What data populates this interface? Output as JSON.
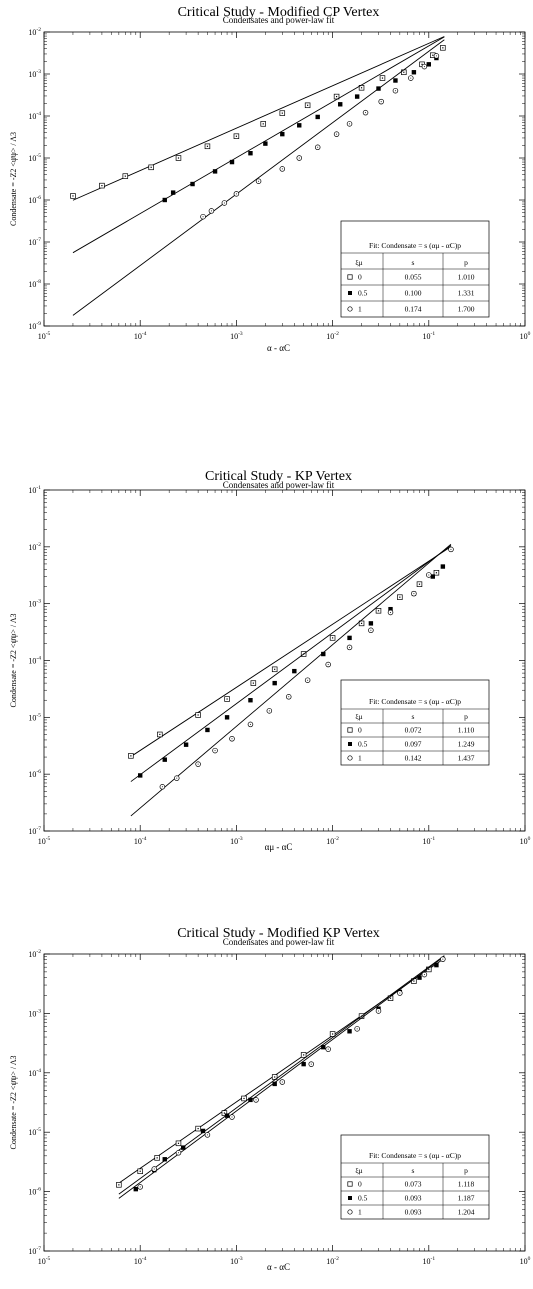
{
  "chart_data": [
    {
      "type": "scatter",
      "title": "Critical Study - Modified CP Vertex",
      "subtitle": "Condensates and power-law fit",
      "xlabel": "α - αC",
      "ylabel": "Condensate = -Z2 <ψ̄ψ> / Λ3",
      "xscale": "log",
      "yscale": "log",
      "xlim": [
        1e-05,
        1
      ],
      "ylim": [
        1e-09,
        0.01
      ],
      "xticks": [
        "10-5",
        "10-4",
        "10-3",
        "10-2",
        "10-1",
        "100"
      ],
      "yticks": [
        "10-9",
        "10-8",
        "10-7",
        "10-6",
        "10-5",
        "10-4",
        "10-3",
        "10-2"
      ],
      "legend": {
        "title": "Fit: Condensate = s (αμ - αC)p",
        "columns": [
          "ξμ",
          "s",
          "p"
        ],
        "rows": [
          [
            "0",
            "0.055",
            "1.010"
          ],
          [
            "0.5",
            "0.100",
            "1.331"
          ],
          [
            "1",
            "0.174",
            "1.700"
          ]
        ]
      },
      "series": [
        {
          "name": "0",
          "marker": "open-square",
          "s": 0.055,
          "p": 1.01,
          "fit_range": [
            2e-05,
            0.145
          ],
          "x": [
            2e-05,
            4e-05,
            7e-05,
            0.00013,
            0.00025,
            0.0005,
            0.001,
            0.0019,
            0.003,
            0.0055,
            0.011,
            0.02,
            0.033,
            0.055,
            0.085,
            0.11,
            0.14
          ],
          "y": [
            1.25e-06,
            2.2e-06,
            3.7e-06,
            6e-06,
            1e-05,
            1.9e-05,
            3.3e-05,
            6.5e-05,
            0.000117,
            0.00018,
            0.00029,
            0.00047,
            0.0008,
            0.0011,
            0.0017,
            0.0028,
            0.0042
          ]
        },
        {
          "name": "0.5",
          "marker": "filled-square",
          "s": 0.1,
          "p": 1.331,
          "fit_range": [
            2e-05,
            0.145
          ],
          "x": [
            0.00018,
            0.00022,
            0.00035,
            0.0006,
            0.0009,
            0.0014,
            0.002,
            0.003,
            0.0045,
            0.007,
            0.012,
            0.018,
            0.03,
            0.045,
            0.07,
            0.1,
            0.12
          ],
          "y": [
            1e-06,
            1.5e-06,
            2.4e-06,
            4.8e-06,
            8e-06,
            1.3e-05,
            2.2e-05,
            3.7e-05,
            6e-05,
            9.5e-05,
            0.00019,
            0.00029,
            0.00045,
            0.0007,
            0.0011,
            0.0017,
            0.0024
          ]
        },
        {
          "name": "1",
          "marker": "open-circle",
          "s": 0.174,
          "p": 1.7,
          "fit_range": [
            2e-05,
            0.145
          ],
          "x": [
            0.00045,
            0.00055,
            0.00075,
            0.001,
            0.0017,
            0.003,
            0.0045,
            0.007,
            0.011,
            0.015,
            0.022,
            0.032,
            0.045,
            0.065,
            0.09,
            0.12
          ],
          "y": [
            4e-07,
            5.5e-07,
            8.5e-07,
            1.4e-06,
            2.8e-06,
            5.5e-06,
            1e-05,
            1.8e-05,
            3.7e-05,
            6.5e-05,
            0.00012,
            0.00022,
            0.0004,
            0.0008,
            0.0015,
            0.0027
          ]
        }
      ]
    },
    {
      "type": "scatter",
      "title": "Critical Study - KP Vertex",
      "subtitle": "Condensates and power-law fit",
      "xlabel": "αμ - αC",
      "ylabel": "Condensate = -Z2 <ψ̄ψ> / Λ3",
      "xscale": "log",
      "yscale": "log",
      "xlim": [
        1e-05,
        1
      ],
      "ylim": [
        1e-07,
        0.1
      ],
      "xticks": [
        "10-5",
        "10-4",
        "10-3",
        "10-2",
        "10-1",
        "100"
      ],
      "yticks": [
        "10-7",
        "10-6",
        "10-5",
        "10-4",
        "10-3",
        "10-2",
        "10-1"
      ],
      "legend": {
        "title": "Fit: Condensate = s (αμ - αC)p",
        "columns": [
          "ξμ",
          "s",
          "p"
        ],
        "rows": [
          [
            "0",
            "0.072",
            "1.110"
          ],
          [
            "0.5",
            "0.097",
            "1.249"
          ],
          [
            "1",
            "0.142",
            "1.437"
          ]
        ]
      },
      "series": [
        {
          "name": "0",
          "marker": "open-square",
          "s": 0.072,
          "p": 1.11,
          "fit_range": [
            8e-05,
            0.17
          ],
          "x": [
            8e-05,
            0.00016,
            0.0004,
            0.0008,
            0.0015,
            0.0025,
            0.005,
            0.01,
            0.02,
            0.03,
            0.05,
            0.08,
            0.12
          ],
          "y": [
            2.1e-06,
            5e-06,
            1.1e-05,
            2.1e-05,
            4e-05,
            7e-05,
            0.00013,
            0.00025,
            0.00045,
            0.00075,
            0.0013,
            0.0022,
            0.0035
          ]
        },
        {
          "name": "0.5",
          "marker": "filled-square",
          "s": 0.097,
          "p": 1.249,
          "fit_range": [
            8e-05,
            0.17
          ],
          "x": [
            0.0001,
            0.00018,
            0.0003,
            0.0005,
            0.0008,
            0.0014,
            0.0025,
            0.004,
            0.008,
            0.015,
            0.025,
            0.04,
            0.07,
            0.11,
            0.14
          ],
          "y": [
            9.5e-07,
            1.8e-06,
            3.3e-06,
            6e-06,
            1e-05,
            2e-05,
            4e-05,
            6.5e-05,
            0.00013,
            0.00025,
            0.00045,
            0.0008,
            0.0015,
            0.003,
            0.0045
          ]
        },
        {
          "name": "1",
          "marker": "open-circle",
          "s": 0.142,
          "p": 1.437,
          "fit_range": [
            8e-05,
            0.17
          ],
          "x": [
            0.00017,
            0.00024,
            0.0004,
            0.0006,
            0.0009,
            0.0014,
            0.0022,
            0.0035,
            0.0055,
            0.009,
            0.015,
            0.025,
            0.04,
            0.07,
            0.1,
            0.17
          ],
          "y": [
            6e-07,
            8.5e-07,
            1.5e-06,
            2.6e-06,
            4.2e-06,
            7.5e-06,
            1.3e-05,
            2.3e-05,
            4.5e-05,
            8.5e-05,
            0.00017,
            0.00034,
            0.0007,
            0.0015,
            0.0032,
            0.009
          ]
        }
      ]
    },
    {
      "type": "scatter",
      "title": "Critical Study - Modified KP Vertex",
      "subtitle": "Condensates and power-law fit",
      "xlabel": "α - αC",
      "ylabel": "Condensate = -Z2 <ψ̄ψ> / Λ3",
      "xscale": "log",
      "yscale": "log",
      "xlim": [
        1e-05,
        1
      ],
      "ylim": [
        1e-07,
        0.01
      ],
      "xticks": [
        "10-5",
        "10-4",
        "10-3",
        "10-2",
        "10-1",
        "100"
      ],
      "yticks": [
        "10-7",
        "10-6",
        "10-5",
        "10-4",
        "10-3",
        "10-2"
      ],
      "legend": {
        "title": "Fit: Condensate = s (αμ - αC)p",
        "columns": [
          "ξμ",
          "s",
          "p"
        ],
        "rows": [
          [
            "0",
            "0.073",
            "1.118"
          ],
          [
            "0.5",
            "0.093",
            "1.187"
          ],
          [
            "1",
            "0.093",
            "1.204"
          ]
        ]
      },
      "series": [
        {
          "name": "0",
          "marker": "open-square",
          "s": 0.073,
          "p": 1.118,
          "fit_range": [
            6e-05,
            0.145
          ],
          "x": [
            6e-05,
            0.0001,
            0.00015,
            0.00025,
            0.0004,
            0.00075,
            0.0012,
            0.0025,
            0.005,
            0.01,
            0.02,
            0.04,
            0.07,
            0.1
          ],
          "y": [
            1.3e-06,
            2.2e-06,
            3.7e-06,
            6.5e-06,
            1.15e-05,
            2.1e-05,
            3.7e-05,
            8.5e-05,
            0.0002,
            0.00045,
            0.0009,
            0.0018,
            0.0035,
            0.0055
          ]
        },
        {
          "name": "0.5",
          "marker": "filled-square",
          "s": 0.093,
          "p": 1.187,
          "fit_range": [
            6e-05,
            0.145
          ],
          "x": [
            9e-05,
            0.00014,
            0.00018,
            0.00028,
            0.00045,
            0.0008,
            0.0014,
            0.0025,
            0.005,
            0.008,
            0.015,
            0.03,
            0.05,
            0.08,
            0.12
          ],
          "y": [
            1.1e-06,
            2.3e-06,
            3.5e-06,
            5.5e-06,
            1.05e-05,
            1.9e-05,
            3.5e-05,
            6.5e-05,
            0.00014,
            0.00027,
            0.0005,
            0.0012,
            0.0023,
            0.004,
            0.0065
          ]
        },
        {
          "name": "1",
          "marker": "open-circle",
          "s": 0.093,
          "p": 1.204,
          "fit_range": [
            6e-05,
            0.145
          ],
          "x": [
            0.0001,
            0.00014,
            0.00025,
            0.0005,
            0.0009,
            0.0016,
            0.003,
            0.006,
            0.009,
            0.018,
            0.03,
            0.05,
            0.09,
            0.14
          ],
          "y": [
            1.2e-06,
            2.4e-06,
            4.5e-06,
            9e-06,
            1.8e-05,
            3.5e-05,
            7e-05,
            0.00014,
            0.00025,
            0.00055,
            0.0011,
            0.0022,
            0.0045,
            0.0082
          ]
        }
      ]
    }
  ]
}
